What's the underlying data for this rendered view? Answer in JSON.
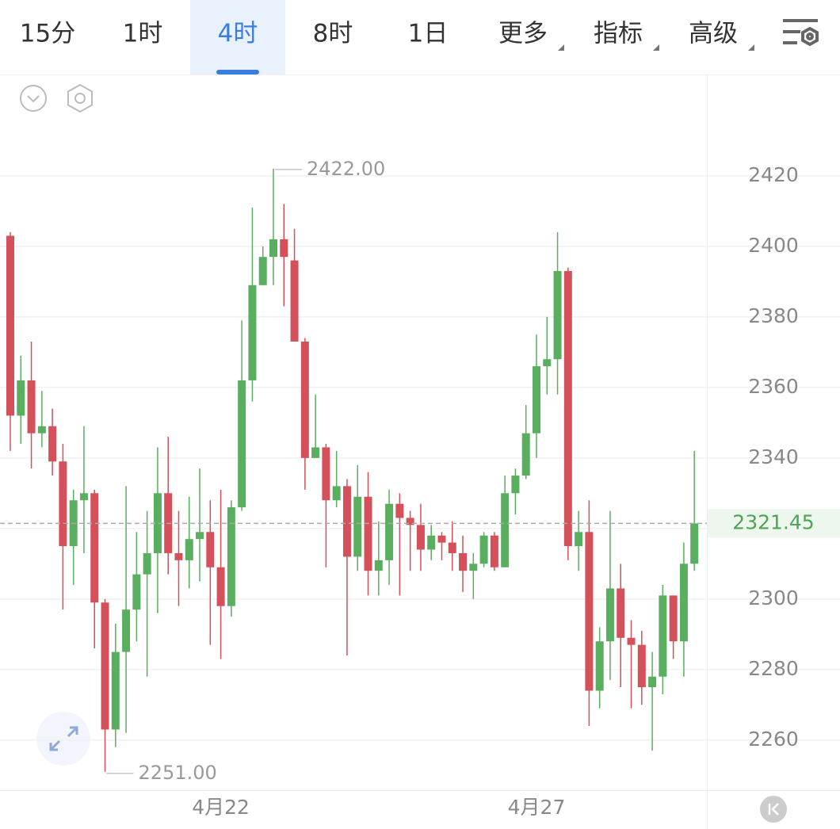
{
  "toolbar": {
    "tabs": [
      "15分",
      "1时",
      "4时",
      "8时",
      "1日",
      "更多",
      "指标",
      "高级"
    ],
    "selected": "4时"
  },
  "chart_data": {
    "type": "candlestick",
    "categories": [
      null,
      null,
      null,
      null,
      null,
      null,
      null,
      null,
      null,
      null,
      null,
      null,
      null,
      null,
      null,
      null,
      null,
      null,
      null,
      null,
      "4月22",
      null,
      null,
      null,
      null,
      null,
      null,
      null,
      null,
      null,
      null,
      null,
      null,
      null,
      null,
      null,
      null,
      null,
      null,
      null,
      null,
      null,
      null,
      null,
      null,
      null,
      null,
      null,
      null,
      null,
      "4月27",
      null,
      null,
      null,
      null,
      null,
      null,
      null,
      null,
      null,
      null,
      null,
      null,
      null,
      null,
      null
    ],
    "open": [
      2403,
      2352,
      2362,
      2347,
      2349,
      2339,
      2315,
      2328,
      2330,
      2299,
      2263,
      2285,
      2297,
      2307,
      2313,
      2330,
      2313,
      2311,
      2317,
      2319,
      2309,
      2298,
      2326,
      2362,
      2389,
      2397,
      2402,
      2396,
      2373,
      2340,
      2343,
      2328,
      2332,
      2312,
      2329,
      2308,
      2311,
      2327,
      2323,
      2321,
      2314,
      2318,
      2316,
      2313,
      2308,
      2310,
      2318,
      2309,
      2330,
      2335,
      2347,
      2366,
      2368,
      2393,
      2315,
      2319,
      2274,
      2288,
      2303,
      2289,
      2287,
      2275,
      2278,
      2301,
      2288,
      2310
    ],
    "close": [
      2352,
      2362,
      2347,
      2349,
      2339,
      2315,
      2328,
      2330,
      2299,
      2263,
      2285,
      2297,
      2307,
      2313,
      2330,
      2313,
      2311,
      2317,
      2319,
      2309,
      2298,
      2326,
      2362,
      2389,
      2397,
      2402,
      2397,
      2373,
      2340,
      2343,
      2328,
      2332,
      2312,
      2329,
      2308,
      2311,
      2327,
      2323,
      2321,
      2314,
      2318,
      2316,
      2313,
      2308,
      2310,
      2318,
      2309,
      2330,
      2335,
      2347,
      2366,
      2368,
      2393,
      2315,
      2319,
      2274,
      2288,
      2303,
      2289,
      2287,
      2275,
      2278,
      2301,
      2288,
      2310,
      2321.45
    ],
    "high": [
      2404,
      2369,
      2373,
      2359,
      2354,
      2344,
      2331,
      2349,
      2331,
      2300,
      2293,
      2332,
      2319,
      2325,
      2343,
      2346,
      2325,
      2329,
      2337,
      2328,
      2331,
      2328,
      2379,
      2411,
      2400,
      2422,
      2412,
      2405,
      2374,
      2358,
      2344,
      2342,
      2334,
      2338,
      2336,
      2322,
      2331,
      2330,
      2325,
      2327,
      2321,
      2319,
      2322,
      2318,
      2313,
      2319,
      2319,
      2335,
      2337,
      2355,
      2375,
      2380,
      2404,
      2394,
      2325,
      2328,
      2292,
      2325,
      2310,
      2294,
      2291,
      2285,
      2304,
      2301,
      2316,
      2342
    ],
    "low": [
      2342,
      2344,
      2337,
      2343,
      2335,
      2297,
      2304,
      2313,
      2286,
      2251,
      2258,
      2262,
      2288,
      2278,
      2296,
      2307,
      2298,
      2303,
      2305,
      2287,
      2283,
      2295,
      2325,
      2356,
      2389,
      2389,
      2383,
      2373,
      2331,
      2340,
      2309,
      2326,
      2284,
      2308,
      2301,
      2301,
      2304,
      2301,
      2308,
      2308,
      2311,
      2311,
      2308,
      2302,
      2300,
      2309,
      2308,
      2309,
      2324,
      2334,
      2340,
      2358,
      2358,
      2311,
      2308,
      2264,
      2269,
      2277,
      2275,
      2269,
      2270,
      2257,
      2273,
      2283,
      2278,
      2308
    ],
    "up_color": "#5aae5f",
    "down_color": "#d4505a",
    "ylim": [
      2245.8,
      2448.5
    ],
    "yticks": [
      2260,
      2280,
      2300,
      2320,
      2340,
      2360,
      2380,
      2400,
      2420
    ],
    "grid": true,
    "last_price": 2321.45,
    "annotations": {
      "high": {
        "value": 2422,
        "label": "2422.00"
      },
      "low": {
        "value": 2251,
        "label": "2251.00"
      }
    }
  }
}
